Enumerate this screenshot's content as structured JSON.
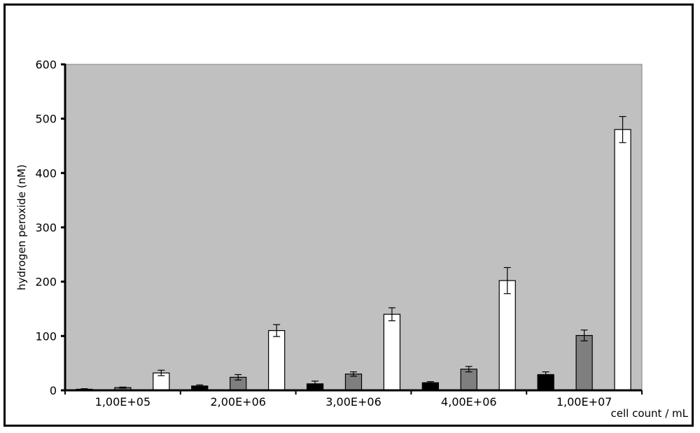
{
  "chart_data": {
    "type": "bar",
    "categories": [
      "1,00E+05",
      "2,00E+06",
      "3,00E+06",
      "4,00E+06",
      "1,00E+07"
    ],
    "series": [
      {
        "color": "#000000",
        "values": [
          2,
          8,
          12,
          14,
          29
        ],
        "errors": [
          1,
          2,
          5,
          2,
          5
        ]
      },
      {
        "color": "#7f7f7f",
        "values": [
          5,
          24,
          30,
          39,
          101
        ],
        "errors": [
          1,
          5,
          4,
          5,
          10
        ]
      },
      {
        "color": "#ffffff",
        "values": [
          32,
          110,
          140,
          202,
          480
        ],
        "errors": [
          5,
          11,
          12,
          24,
          24
        ]
      }
    ],
    "xlabel": "cell count / mL",
    "ylabel": "hydrogen peroxide (nM)",
    "ylim": [
      0,
      600
    ],
    "yticks": [
      0,
      100,
      200,
      300,
      400,
      500,
      600
    ],
    "grid": false,
    "plot_background": "#c0c0c0",
    "legend": "none"
  }
}
